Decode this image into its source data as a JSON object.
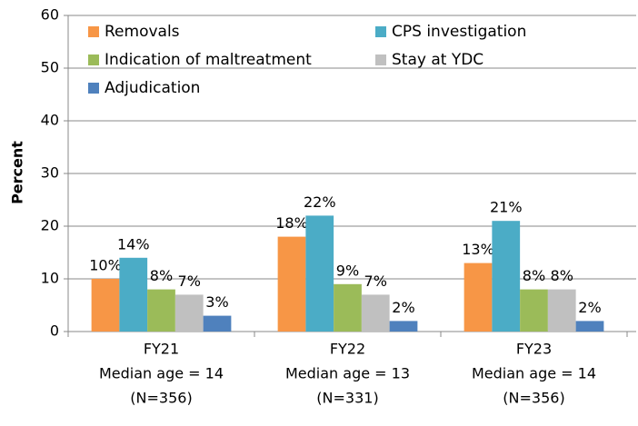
{
  "chart_data": {
    "type": "bar",
    "y_label": "Percent",
    "categories": [
      [
        "FY21",
        "Median age = 14",
        "(N=356)"
      ],
      [
        "FY22",
        "Median age = 13",
        "(N=331)"
      ],
      [
        "FY23",
        "Median age = 14",
        "(N=356)"
      ]
    ],
    "series": [
      {
        "name": "Removals",
        "color": "#F79646",
        "values": [
          10,
          18,
          13
        ],
        "value_labels": [
          "10%",
          "18%",
          "13%"
        ]
      },
      {
        "name": "CPS investigation",
        "color": "#4BACC6",
        "values": [
          14,
          22,
          21
        ],
        "value_labels": [
          "14%",
          "22%",
          "21%"
        ]
      },
      {
        "name": "Indication of maltreatment",
        "color": "#9BBB59",
        "values": [
          8,
          9,
          8
        ],
        "value_labels": [
          "8%",
          "9%",
          "8%"
        ]
      },
      {
        "name": "Stay at YDC",
        "color": "#C0C0C0",
        "values": [
          7,
          7,
          8
        ],
        "value_labels": [
          "7%",
          "7%",
          "8%"
        ]
      },
      {
        "name": "Adjudication",
        "color": "#4F81BD",
        "values": [
          3,
          2,
          2
        ],
        "value_labels": [
          "3%",
          "2%",
          "2%"
        ]
      }
    ],
    "ylim": [
      0,
      60
    ],
    "yticks": [
      0,
      10,
      20,
      30,
      40,
      50,
      60
    ],
    "grid": true,
    "legend": "top-left"
  }
}
